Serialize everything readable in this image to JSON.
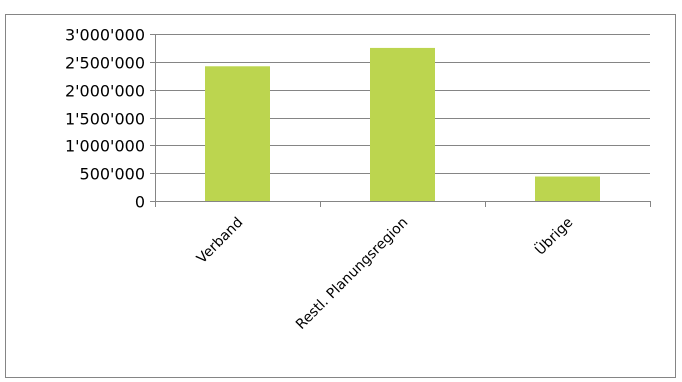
{
  "chart_data": {
    "type": "bar",
    "title": "",
    "xlabel": "",
    "ylabel": "",
    "categories": [
      "Verband",
      "Restl. Planungsregion",
      "Übrige"
    ],
    "values": [
      2420000,
      2750000,
      440000
    ],
    "ylim": [
      0,
      3000000
    ],
    "yticks": [
      0,
      500000,
      1000000,
      1500000,
      2000000,
      2500000,
      3000000
    ],
    "ytick_labels": [
      "0",
      "500'000",
      "1'000'000",
      "1'500'000",
      "2'000'000",
      "2'500'000",
      "3'000'000"
    ],
    "grid": true,
    "legend": "none",
    "colors": {
      "bar": "#bcd54f",
      "grid": "#858585",
      "axis": "#858585",
      "border": "#858585"
    }
  }
}
